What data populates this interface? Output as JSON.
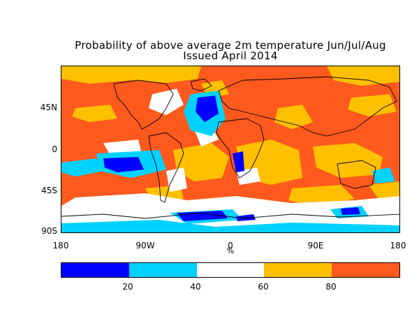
{
  "title": {
    "line1": "Probability of above average 2m temperature Jun/Jul/Aug",
    "line2": "Issued April 2014"
  },
  "map": {
    "background_color": "#ff5a1e",
    "y_axis_labels": [
      "45N",
      "0",
      "45S",
      "90S"
    ],
    "x_axis_labels": [
      "180",
      "90W",
      "0",
      "90E",
      "180"
    ],
    "unit_label": "%"
  },
  "legend": {
    "colors": [
      "#0000ff",
      "#00d2ff",
      "#ffffff",
      "#ffc000",
      "#ff5a1e"
    ],
    "labels": [
      "20",
      "40",
      "60",
      "80"
    ]
  }
}
